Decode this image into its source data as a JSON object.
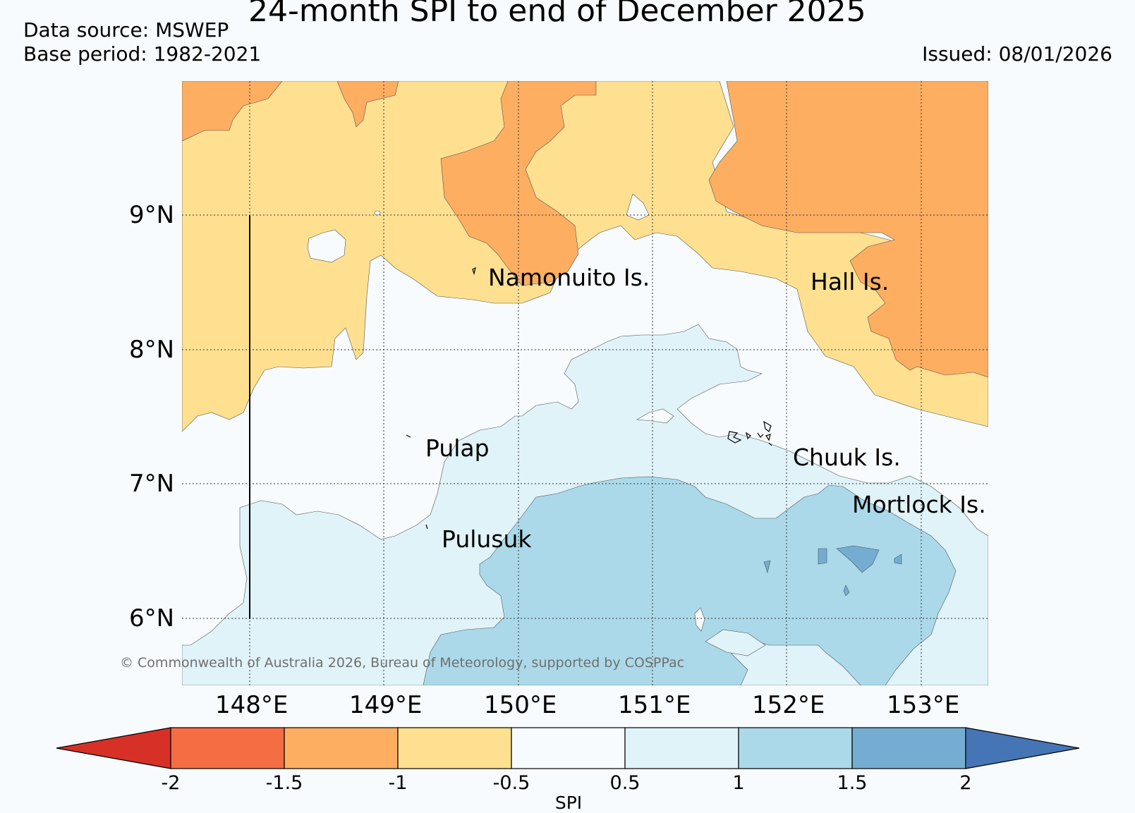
{
  "header": {
    "title": "24-month SPI to end of December 2025",
    "data_source": "Data source: MSWEP",
    "base_period": "Base period: 1982-2021",
    "issued": "Issued: 08/01/2026"
  },
  "map": {
    "lat_labels": [
      "9°N",
      "8°N",
      "7°N",
      "6°N"
    ],
    "lon_labels": [
      "148°E",
      "149°E",
      "150°E",
      "151°E",
      "152°E",
      "153°E"
    ],
    "places": [
      "Namonuito Is.",
      "Hall Is.",
      "Pulap",
      "Chuuk Is.",
      "Mortlock Is.",
      "Pulusuk"
    ],
    "copyright": "© Commonwealth of Australia 2026, Bureau of Meteorology, supported by COSPPac"
  },
  "colorbar": {
    "title": "SPI",
    "tick_labels": [
      "-2",
      "-1.5",
      "-1",
      "-0.5",
      "0.5",
      "1",
      "1.5",
      "2"
    ],
    "colors": {
      "below_min": "#d73027",
      "-2_-1.5": "#f46d43",
      "-1.5_-1": "#fdae61",
      "-1_-0.5": "#fee090",
      "-0.5_0.5": "#f7fbfd",
      "0.5_1": "#e0f3f8",
      "1_1.5": "#abd9e9",
      "1.5_2": "#74add1",
      "above_max": "#4575b4"
    }
  }
}
